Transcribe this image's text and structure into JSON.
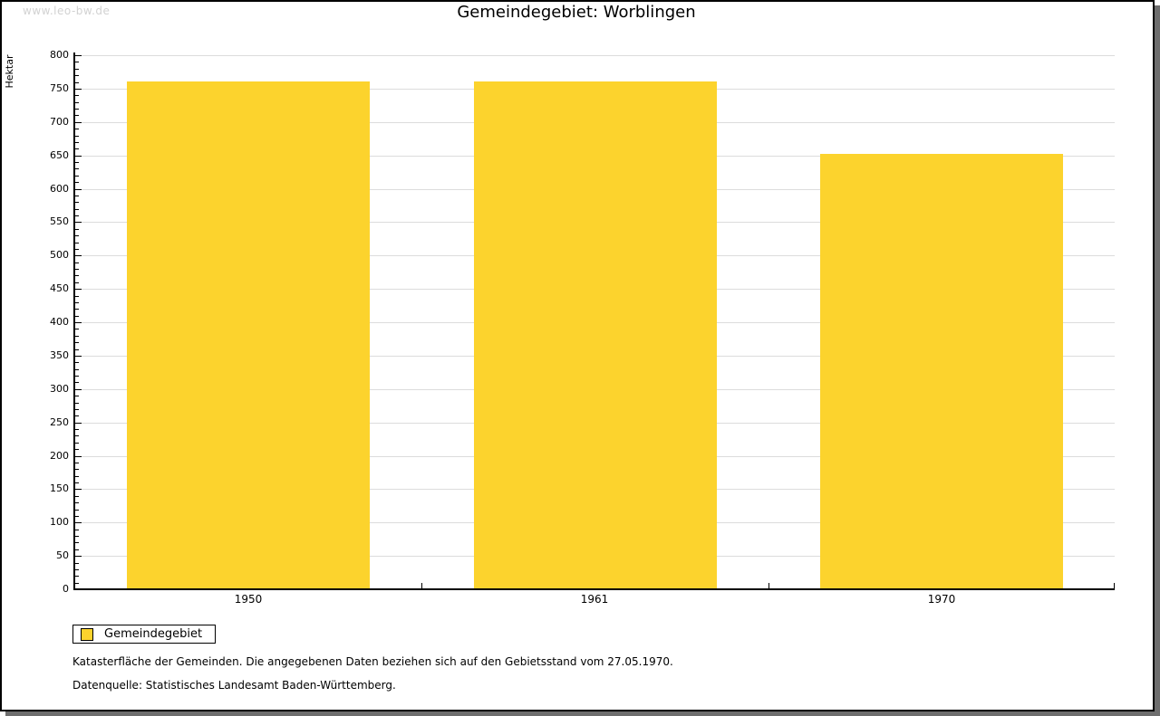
{
  "watermark": "www.leo-bw.de",
  "header": {
    "title": "Gemeindegebiet: Worblingen"
  },
  "chart_data": {
    "type": "bar",
    "title": "Gemeindegebiet: Worblingen",
    "categories": [
      "1950",
      "1961",
      "1970"
    ],
    "series": [
      {
        "name": "Gemeindegebiet",
        "values": [
          760,
          760,
          652
        ],
        "color": "#fcd32d"
      }
    ],
    "xlabel": "",
    "ylabel": "Hektar",
    "ylim": [
      0,
      800
    ],
    "ytick_step": 50,
    "yminor_step": 10,
    "grid": true,
    "legend_position": "bottom-left"
  },
  "legend": {
    "items": [
      {
        "label": "Gemeindegebiet",
        "color": "#fcd32d"
      }
    ]
  },
  "footnotes": [
    "Katasterfläche der Gemeinden. Die angegebenen Daten beziehen sich auf den Gebietsstand vom 27.05.1970.",
    "Datenquelle: Statistisches Landesamt Baden-Württemberg."
  ],
  "colors": {
    "bar": "#fcd32d",
    "gridline": "#dcdcdc",
    "axis": "#000000",
    "watermark_text": "#d2d2d2",
    "frame_shadow": "#6e6e6e"
  }
}
